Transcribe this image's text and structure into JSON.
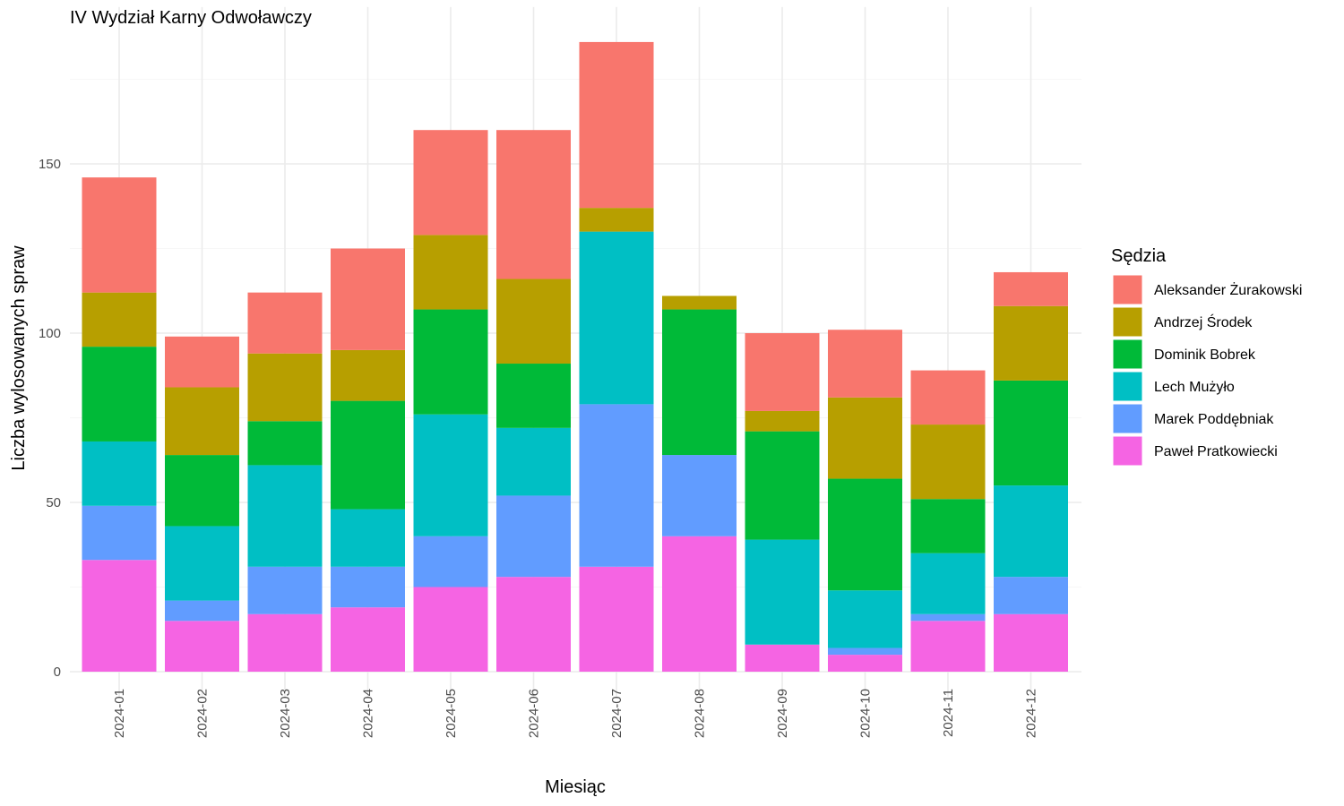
{
  "chart_data": {
    "type": "bar",
    "stacked": true,
    "title": "IV Wydział Karny Odwoławczy",
    "xlabel": "Miesiąc",
    "ylabel": "Liczba wylosowanych spraw",
    "ylim": [
      0,
      195
    ],
    "yticks": [
      0,
      50,
      100,
      150
    ],
    "grid": true,
    "legend": {
      "title": "Sędzia",
      "placement": "right"
    },
    "categories": [
      "2024-01",
      "2024-02",
      "2024-03",
      "2024-04",
      "2024-05",
      "2024-06",
      "2024-07",
      "2024-08",
      "2024-09",
      "2024-10",
      "2024-11",
      "2024-12"
    ],
    "series": [
      {
        "name": "Aleksander Żurakowski",
        "color": "#F8766D",
        "values": [
          34,
          15,
          18,
          30,
          31,
          44,
          49,
          0,
          23,
          20,
          16,
          10
        ]
      },
      {
        "name": "Andrzej Środek",
        "color": "#B79F00",
        "values": [
          16,
          20,
          20,
          15,
          22,
          25,
          7,
          4,
          6,
          24,
          22,
          22
        ]
      },
      {
        "name": "Dominik Bobrek",
        "color": "#00BA38",
        "values": [
          28,
          21,
          13,
          32,
          31,
          19,
          0,
          43,
          32,
          33,
          16,
          31
        ]
      },
      {
        "name": "Lech Mużyło",
        "color": "#00BFC4",
        "values": [
          19,
          22,
          30,
          17,
          36,
          20,
          51,
          0,
          31,
          17,
          18,
          27
        ]
      },
      {
        "name": "Marek Poddębniak",
        "color": "#619CFF",
        "values": [
          16,
          6,
          14,
          12,
          15,
          24,
          48,
          24,
          0,
          2,
          2,
          11
        ]
      },
      {
        "name": "Paweł Pratkowiecki",
        "color": "#F564E3",
        "values": [
          33,
          15,
          17,
          19,
          25,
          28,
          31,
          40,
          8,
          5,
          15,
          17
        ]
      }
    ]
  }
}
